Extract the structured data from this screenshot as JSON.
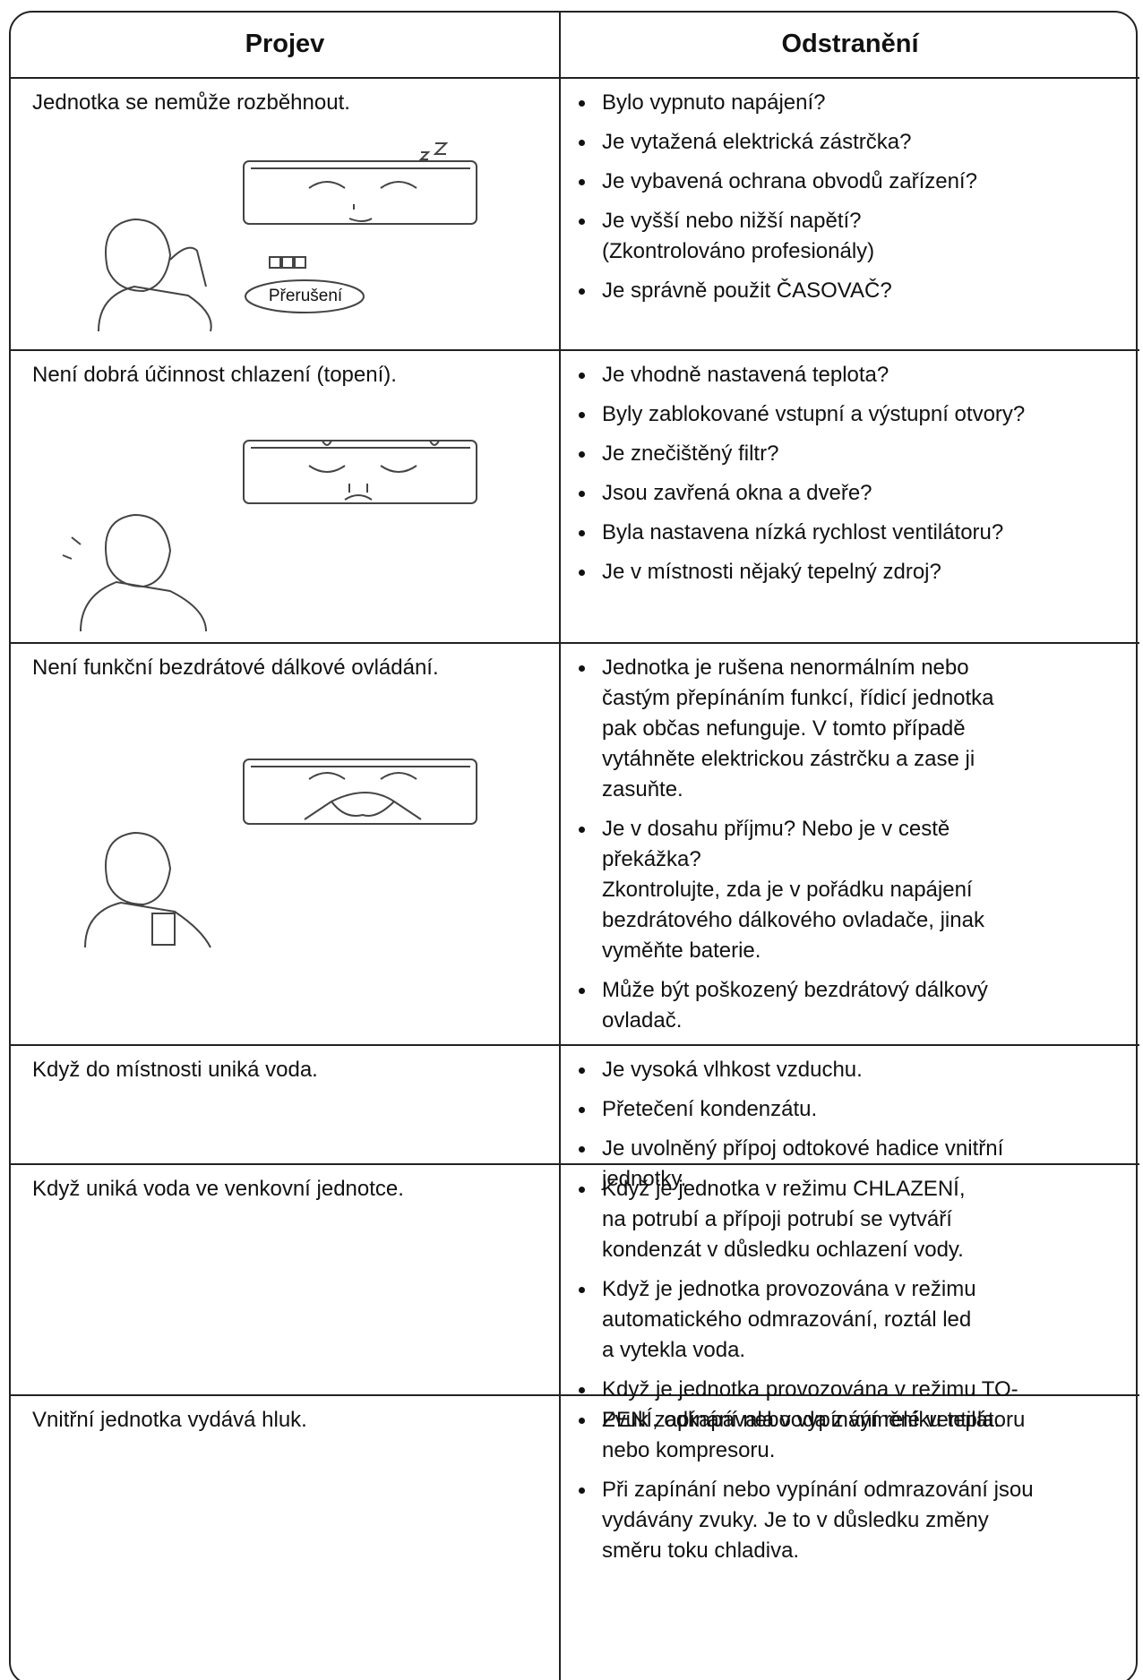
{
  "table": {
    "headers": [
      "Projev",
      "Odstranění"
    ],
    "rows": [
      {
        "symptom": "Jednotka se nemůže rozběhnout.",
        "illustration_label": "Přerušení",
        "causes": [
          "Bylo vypnuto napájení?",
          "Je vytažená elektrická zástrčka?",
          "Je vybavená ochrana obvodů zařízení?",
          "Je vyšší nebo nižší napětí?\n(Zkontrolováno profesionály)",
          "Je správně použit ČASOVAČ?"
        ]
      },
      {
        "symptom": "Není dobrá účinnost chlazení (topení).",
        "causes": [
          "Je vhodně nastavená teplota?",
          "Byly zablokované vstupní a výstupní otvory?",
          "Je znečištěný filtr?",
          "Jsou zavřená okna a dveře?",
          "Byla nastavena nízká rychlost ventilátoru?",
          "Je v místnosti nějaký tepelný zdroj?"
        ]
      },
      {
        "symptom": "Není funkční bezdrátové dálkové ovládání.",
        "causes": [
          "Jednotka je rušena nenormálním nebo\nčastým přepínáním funkcí, řídicí jednotka\npak občas nefunguje. V tomto případě\nvytáhněte elektrickou zástrčku a zase ji\nzasuňte.",
          "Je v dosahu příjmu? Nebo je v cestě\npřekážka?\nZkontrolujte, zda je v pořádku napájení\nbezdrátového dálkového ovladače, jinak\nvyměňte baterie.",
          "Může být poškozený bezdrátový dálkový\novladač."
        ]
      },
      {
        "symptom": "Když do místnosti uniká voda.",
        "causes": [
          "Je vysoká vlhkost vzduchu.",
          "Přetečení kondenzátu.",
          "Je uvolněný přípoj odtokové hadice vnitřní\njednotky."
        ]
      },
      {
        "symptom": "Když uniká voda ve venkovní jednotce.",
        "causes": [
          "Když je jednotka v režimu CHLAZENÍ,\nna potrubí a přípoji potrubí se vytváří\nkondenzát v důsledku ochlazení vody.",
          "Když je jednotka provozována v režimu\nautomatického odmrazování, roztál led\na vytekla voda.",
          "Když je jednotka provozována v režimu TO-\nPENÍ, odkapávala voda z výměníku tepla."
        ]
      },
      {
        "symptom": "Vnitřní jednotka vydává hluk.",
        "causes": [
          "Zvuk zapínání nebo vypínání relé ventilátoru\nnebo kompresoru.",
          "Při zapínání nebo vypínání odmrazování jsou\nvydávány zvuky. Je to v důsledku změny\nsměru toku chladiva."
        ]
      }
    ]
  }
}
